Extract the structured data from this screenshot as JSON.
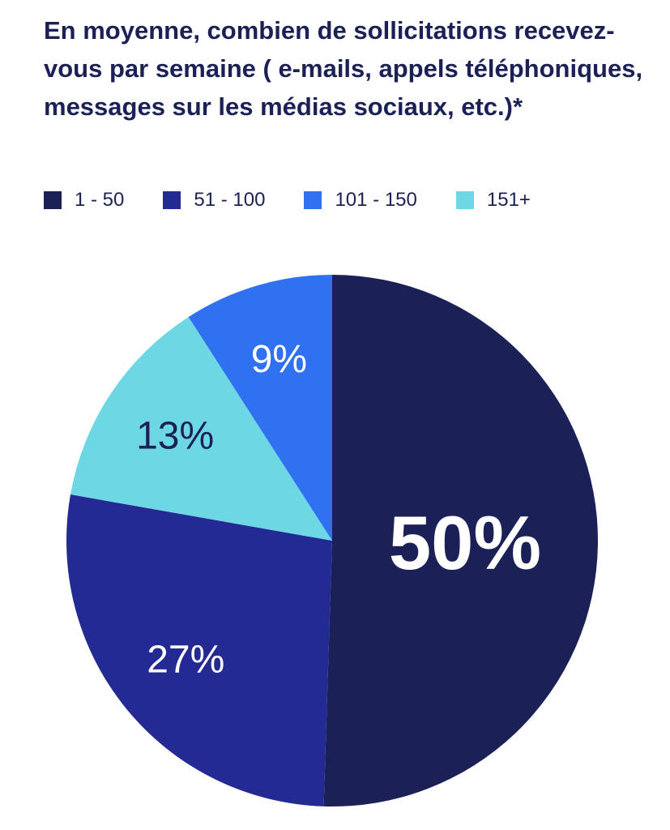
{
  "chart_data": {
    "type": "pie",
    "title": "En moyenne, combien de sollicitations recevez-vous par semaine ( e-mails, appels téléphoniques, messages sur les médias sociaux, etc.)*",
    "legend_position": "top",
    "categories": [
      "1 - 50",
      "51 - 100",
      "101 - 150",
      "151+"
    ],
    "values": [
      50,
      27,
      9,
      13
    ],
    "labels": [
      "50%",
      "27%",
      "9%",
      "13%"
    ],
    "colors": [
      "#1b2157",
      "#232a93",
      "#3071f2",
      "#6dd8e4"
    ],
    "label_colors": [
      "#ffffff",
      "#ffffff",
      "#ffffff",
      "#1b2157"
    ],
    "slice_order": [
      0,
      1,
      3,
      2
    ]
  }
}
